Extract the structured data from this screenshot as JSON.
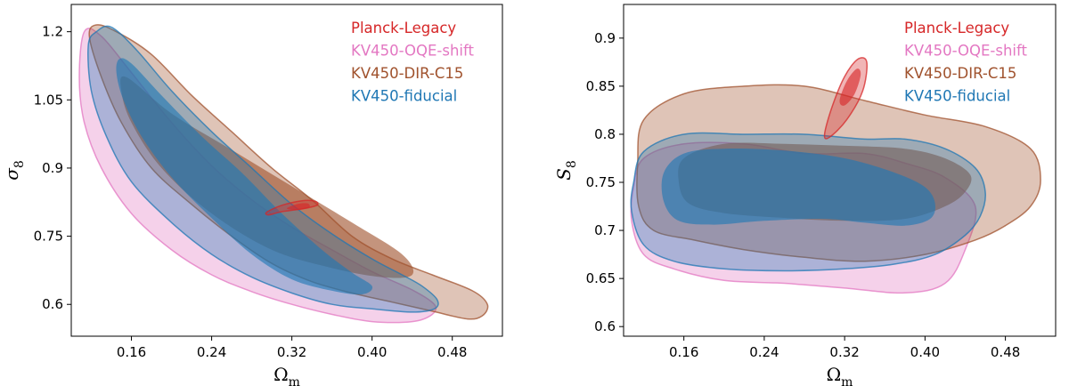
{
  "chart_data": [
    {
      "type": "contour",
      "panel": "left",
      "xlabel": "Ω",
      "xlabel_sub": "m",
      "ylabel": "σ",
      "ylabel_sub": "8",
      "xlim": [
        0.1,
        0.53
      ],
      "ylim": [
        0.53,
        1.26
      ],
      "xticks": [
        0.16,
        0.24,
        0.32,
        0.4,
        0.48
      ],
      "xtick_labels": [
        "0.16",
        "0.24",
        "0.32",
        "0.40",
        "0.48"
      ],
      "yticks": [
        0.6,
        0.75,
        0.9,
        1.05,
        1.2
      ],
      "ytick_labels": [
        "0.6",
        "0.75",
        "0.9",
        "1.05",
        "1.2"
      ],
      "legend_position": "top-right",
      "legend": [
        "Planck-Legacy",
        "KV450-OQE-shift",
        "KV450-DIR-C15",
        "KV450-fiducial"
      ],
      "series": [
        {
          "name": "KV450-OQE-shift",
          "color": "#e377c2",
          "outer": [
            [
              0.113,
              1.2
            ],
            [
              0.13,
              1.19
            ],
            [
              0.16,
              1.11
            ],
            [
              0.2,
              1.0
            ],
            [
              0.24,
              0.905
            ],
            [
              0.28,
              0.83
            ],
            [
              0.32,
              0.77
            ],
            [
              0.36,
              0.72
            ],
            [
              0.4,
              0.672
            ],
            [
              0.44,
              0.632
            ],
            [
              0.462,
              0.6
            ],
            [
              0.46,
              0.578
            ],
            [
              0.44,
              0.562
            ],
            [
              0.4,
              0.562
            ],
            [
              0.36,
              0.578
            ],
            [
              0.32,
              0.6
            ],
            [
              0.28,
              0.628
            ],
            [
              0.24,
              0.665
            ],
            [
              0.2,
              0.72
            ],
            [
              0.16,
              0.8
            ],
            [
              0.13,
              0.9
            ],
            [
              0.113,
              1.0
            ],
            [
              0.108,
              1.1
            ]
          ]
        },
        {
          "name": "KV450-DIR-C15",
          "color": "#a0522d",
          "outer": [
            [
              0.125,
              1.215
            ],
            [
              0.145,
              1.2
            ],
            [
              0.18,
              1.15
            ],
            [
              0.22,
              1.06
            ],
            [
              0.26,
              0.98
            ],
            [
              0.3,
              0.9
            ],
            [
              0.34,
              0.83
            ],
            [
              0.38,
              0.75
            ],
            [
              0.42,
              0.7
            ],
            [
              0.46,
              0.665
            ],
            [
              0.5,
              0.63
            ],
            [
              0.515,
              0.6
            ],
            [
              0.51,
              0.575
            ],
            [
              0.495,
              0.568
            ],
            [
              0.46,
              0.585
            ],
            [
              0.42,
              0.605
            ],
            [
              0.38,
              0.625
            ],
            [
              0.34,
              0.65
            ],
            [
              0.3,
              0.69
            ],
            [
              0.26,
              0.75
            ],
            [
              0.22,
              0.82
            ],
            [
              0.18,
              0.9
            ],
            [
              0.15,
              1.0
            ],
            [
              0.13,
              1.1
            ],
            [
              0.118,
              1.19
            ]
          ],
          "inner": [
            [
              0.155,
              1.1
            ],
            [
              0.2,
              1.02
            ],
            [
              0.26,
              0.94
            ],
            [
              0.32,
              0.86
            ],
            [
              0.38,
              0.78
            ],
            [
              0.43,
              0.71
            ],
            [
              0.44,
              0.665
            ],
            [
              0.41,
              0.66
            ],
            [
              0.36,
              0.68
            ],
            [
              0.3,
              0.72
            ],
            [
              0.24,
              0.8
            ],
            [
              0.19,
              0.9
            ],
            [
              0.16,
              1.0
            ],
            [
              0.15,
              1.07
            ]
          ]
        },
        {
          "name": "KV450-fiducial",
          "color": "#1f77b4",
          "outer": [
            [
              0.125,
              1.2
            ],
            [
              0.14,
              1.21
            ],
            [
              0.165,
              1.16
            ],
            [
              0.2,
              1.07
            ],
            [
              0.24,
              0.98
            ],
            [
              0.28,
              0.9
            ],
            [
              0.32,
              0.82
            ],
            [
              0.36,
              0.755
            ],
            [
              0.4,
              0.7
            ],
            [
              0.43,
              0.665
            ],
            [
              0.45,
              0.64
            ],
            [
              0.465,
              0.61
            ],
            [
              0.462,
              0.59
            ],
            [
              0.44,
              0.583
            ],
            [
              0.4,
              0.59
            ],
            [
              0.36,
              0.6
            ],
            [
              0.32,
              0.625
            ],
            [
              0.28,
              0.66
            ],
            [
              0.24,
              0.71
            ],
            [
              0.2,
              0.78
            ],
            [
              0.16,
              0.87
            ],
            [
              0.135,
              0.97
            ],
            [
              0.12,
              1.07
            ],
            [
              0.117,
              1.17
            ]
          ],
          "inner": [
            [
              0.148,
              1.14
            ],
            [
              0.16,
              1.13
            ],
            [
              0.19,
              1.06
            ],
            [
              0.23,
              0.97
            ],
            [
              0.27,
              0.89
            ],
            [
              0.31,
              0.8
            ],
            [
              0.35,
              0.72
            ],
            [
              0.38,
              0.67
            ],
            [
              0.4,
              0.64
            ],
            [
              0.39,
              0.622
            ],
            [
              0.36,
              0.63
            ],
            [
              0.32,
              0.655
            ],
            [
              0.28,
              0.71
            ],
            [
              0.24,
              0.79
            ],
            [
              0.2,
              0.88
            ],
            [
              0.17,
              0.97
            ],
            [
              0.152,
              1.05
            ],
            [
              0.145,
              1.11
            ]
          ]
        },
        {
          "name": "Planck-Legacy",
          "color": "#d62728",
          "outer": [
            [
              0.295,
              0.803
            ],
            [
              0.31,
              0.818
            ],
            [
              0.33,
              0.828
            ],
            [
              0.343,
              0.827
            ],
            [
              0.345,
              0.818
            ],
            [
              0.33,
              0.81
            ],
            [
              0.31,
              0.804
            ],
            [
              0.297,
              0.797
            ]
          ],
          "inner": [
            [
              0.315,
              0.811
            ],
            [
              0.326,
              0.821
            ],
            [
              0.336,
              0.822
            ],
            [
              0.337,
              0.813
            ],
            [
              0.325,
              0.808
            ]
          ]
        }
      ]
    },
    {
      "type": "contour",
      "panel": "right",
      "xlabel": "Ω",
      "xlabel_sub": "m",
      "ylabel": "S",
      "ylabel_sub": "8",
      "xlim": [
        0.1,
        0.53
      ],
      "ylim": [
        0.59,
        0.935
      ],
      "xticks": [
        0.16,
        0.24,
        0.32,
        0.4,
        0.48
      ],
      "xtick_labels": [
        "0.16",
        "0.24",
        "0.32",
        "0.40",
        "0.48"
      ],
      "yticks": [
        0.6,
        0.65,
        0.7,
        0.75,
        0.8,
        0.85,
        0.9
      ],
      "ytick_labels": [
        "0.6",
        "0.65",
        "0.7",
        "0.75",
        "0.8",
        "0.85",
        "0.9"
      ],
      "legend_position": "top-right",
      "legend": [
        "Planck-Legacy",
        "KV450-OQE-shift",
        "KV450-DIR-C15",
        "KV450-fiducial"
      ],
      "series": [
        {
          "name": "KV450-OQE-shift",
          "color": "#e377c2",
          "outer": [
            [
              0.11,
              0.745
            ],
            [
              0.12,
              0.775
            ],
            [
              0.16,
              0.79
            ],
            [
              0.22,
              0.79
            ],
            [
              0.28,
              0.78
            ],
            [
              0.34,
              0.78
            ],
            [
              0.38,
              0.77
            ],
            [
              0.42,
              0.755
            ],
            [
              0.45,
              0.725
            ],
            [
              0.44,
              0.68
            ],
            [
              0.42,
              0.645
            ],
            [
              0.38,
              0.635
            ],
            [
              0.32,
              0.64
            ],
            [
              0.26,
              0.645
            ],
            [
              0.2,
              0.648
            ],
            [
              0.15,
              0.66
            ],
            [
              0.12,
              0.675
            ],
            [
              0.108,
              0.71
            ]
          ]
        },
        {
          "name": "KV450-DIR-C15",
          "color": "#a0522d",
          "outer": [
            [
              0.114,
              0.77
            ],
            [
              0.12,
              0.815
            ],
            [
              0.16,
              0.842
            ],
            [
              0.22,
              0.85
            ],
            [
              0.28,
              0.85
            ],
            [
              0.34,
              0.835
            ],
            [
              0.4,
              0.82
            ],
            [
              0.46,
              0.808
            ],
            [
              0.505,
              0.785
            ],
            [
              0.515,
              0.752
            ],
            [
              0.505,
              0.725
            ],
            [
              0.48,
              0.705
            ],
            [
              0.45,
              0.69
            ],
            [
              0.4,
              0.675
            ],
            [
              0.34,
              0.668
            ],
            [
              0.28,
              0.672
            ],
            [
              0.22,
              0.68
            ],
            [
              0.17,
              0.69
            ],
            [
              0.13,
              0.7
            ],
            [
              0.115,
              0.725
            ]
          ],
          "inner": [
            [
              0.16,
              0.775
            ],
            [
              0.2,
              0.79
            ],
            [
              0.26,
              0.79
            ],
            [
              0.32,
              0.788
            ],
            [
              0.38,
              0.785
            ],
            [
              0.42,
              0.775
            ],
            [
              0.445,
              0.758
            ],
            [
              0.44,
              0.74
            ],
            [
              0.42,
              0.725
            ],
            [
              0.38,
              0.712
            ],
            [
              0.32,
              0.71
            ],
            [
              0.26,
              0.713
            ],
            [
              0.2,
              0.718
            ],
            [
              0.165,
              0.728
            ],
            [
              0.155,
              0.75
            ]
          ]
        },
        {
          "name": "KV450-fiducial",
          "color": "#1f77b4",
          "outer": [
            [
              0.11,
              0.75
            ],
            [
              0.12,
              0.782
            ],
            [
              0.16,
              0.8
            ],
            [
              0.22,
              0.8
            ],
            [
              0.28,
              0.8
            ],
            [
              0.34,
              0.795
            ],
            [
              0.38,
              0.795
            ],
            [
              0.42,
              0.785
            ],
            [
              0.45,
              0.765
            ],
            [
              0.46,
              0.74
            ],
            [
              0.455,
              0.715
            ],
            [
              0.44,
              0.695
            ],
            [
              0.41,
              0.675
            ],
            [
              0.37,
              0.665
            ],
            [
              0.32,
              0.66
            ],
            [
              0.26,
              0.658
            ],
            [
              0.2,
              0.66
            ],
            [
              0.15,
              0.668
            ],
            [
              0.12,
              0.685
            ],
            [
              0.108,
              0.72
            ]
          ],
          "inner": [
            [
              0.14,
              0.76
            ],
            [
              0.16,
              0.78
            ],
            [
              0.2,
              0.785
            ],
            [
              0.26,
              0.783
            ],
            [
              0.32,
              0.775
            ],
            [
              0.37,
              0.76
            ],
            [
              0.4,
              0.745
            ],
            [
              0.41,
              0.728
            ],
            [
              0.405,
              0.712
            ],
            [
              0.38,
              0.705
            ],
            [
              0.34,
              0.708
            ],
            [
              0.3,
              0.712
            ],
            [
              0.24,
              0.71
            ],
            [
              0.19,
              0.706
            ],
            [
              0.155,
              0.71
            ],
            [
              0.14,
              0.73
            ]
          ]
        },
        {
          "name": "Planck-Legacy",
          "color": "#d62728",
          "outer": [
            [
              0.3,
              0.8
            ],
            [
              0.308,
              0.83
            ],
            [
              0.32,
              0.86
            ],
            [
              0.333,
              0.878
            ],
            [
              0.342,
              0.875
            ],
            [
              0.338,
              0.845
            ],
            [
              0.322,
              0.815
            ],
            [
              0.305,
              0.797
            ]
          ],
          "inner": [
            [
              0.315,
              0.835
            ],
            [
              0.322,
              0.855
            ],
            [
              0.332,
              0.868
            ],
            [
              0.336,
              0.862
            ],
            [
              0.33,
              0.842
            ],
            [
              0.32,
              0.83
            ]
          ]
        }
      ]
    }
  ]
}
